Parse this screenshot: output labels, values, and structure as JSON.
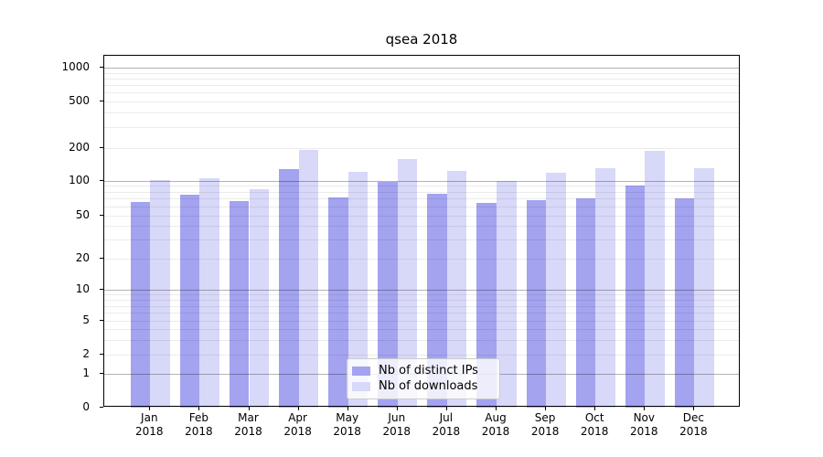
{
  "title": "qsea 2018",
  "colors": {
    "bar_distinct_ips": "#a3a3f0",
    "bar_downloads": "#d8d8f9",
    "grid_major": "#b3b3b3",
    "grid_minor": "#ebebeb",
    "axis": "#000000",
    "legend_border": "#cccccc"
  },
  "legend": {
    "items": [
      {
        "label": "Nb of distinct IPs"
      },
      {
        "label": "Nb of downloads"
      }
    ]
  },
  "chart_data": {
    "type": "bar",
    "title": "qsea 2018",
    "categories": [
      "Jan",
      "Feb",
      "Mar",
      "Apr",
      "May",
      "Jun",
      "Jul",
      "Aug",
      "Sep",
      "Oct",
      "Nov",
      "Dec"
    ],
    "category_year": "2018",
    "series": [
      {
        "name": "Nb of distinct IPs",
        "color": "#a3a3f0",
        "values": [
          65,
          76,
          67,
          127,
          72,
          97,
          77,
          64,
          68,
          71,
          90,
          70
        ]
      },
      {
        "name": "Nb of downloads",
        "color": "#d8d8f9",
        "values": [
          101,
          106,
          84,
          190,
          120,
          157,
          122,
          99,
          118,
          130,
          188,
          131
        ]
      }
    ],
    "y_axis": {
      "scale": "symlog",
      "ticks": [
        0,
        1,
        2,
        5,
        10,
        20,
        50,
        100,
        200,
        500,
        1000
      ],
      "major_gridlines": [
        1,
        10,
        100,
        1000
      ],
      "range": [
        0,
        1000
      ]
    },
    "x_axis": {
      "label_format": "month over year"
    },
    "grid": true,
    "legend_position": "lower center"
  }
}
